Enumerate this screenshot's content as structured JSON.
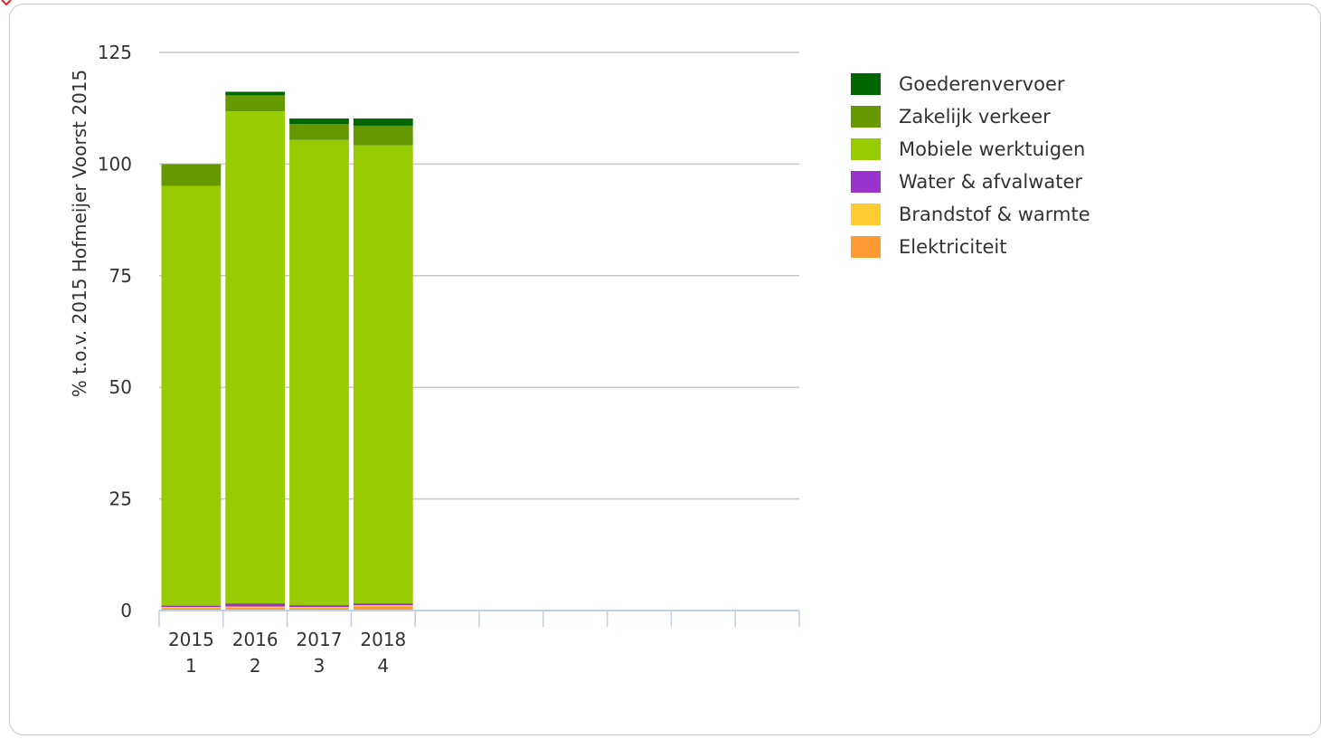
{
  "chart_data": {
    "type": "bar",
    "stacked": true,
    "ylabel": "% t.o.v. 2015 Hofmeijer Voorst 2015",
    "xlabel": "",
    "ylim": [
      0,
      125
    ],
    "yticks": [
      0,
      25,
      50,
      75,
      100,
      125
    ],
    "grid": true,
    "legend_position": "right",
    "categories": [
      [
        "2015",
        "1"
      ],
      [
        "2016",
        "2"
      ],
      [
        "2017",
        "3"
      ],
      [
        "2018",
        "4"
      ]
    ],
    "empty_slots_after": 6,
    "series": [
      {
        "name": "Elektriciteit",
        "color": "#ff9933",
        "values": [
          0.5,
          0.6,
          0.5,
          0.9
        ]
      },
      {
        "name": "Brandstof & warmte",
        "color": "#ffcc33",
        "values": [
          0.3,
          0.3,
          0.3,
          0.3
        ]
      },
      {
        "name": "Water & afvalwater",
        "color": "#9933cc",
        "values": [
          0.3,
          0.7,
          0.4,
          0.4
        ]
      },
      {
        "name": "Mobiele werktuigen",
        "color": "#99cc00",
        "values": [
          94.0,
          110.2,
          104.2,
          102.6
        ]
      },
      {
        "name": "Zakelijk verkeer",
        "color": "#669900",
        "values": [
          4.9,
          3.6,
          3.6,
          4.4
        ]
      },
      {
        "name": "Goederenvervoer",
        "color": "#006600",
        "values": [
          0.0,
          0.8,
          1.2,
          1.6
        ]
      }
    ],
    "legend_order": [
      "Goederenvervoer",
      "Zakelijk verkeer",
      "Mobiele werktuigen",
      "Water & afvalwater",
      "Brandstof & warmte",
      "Elektriciteit"
    ]
  }
}
